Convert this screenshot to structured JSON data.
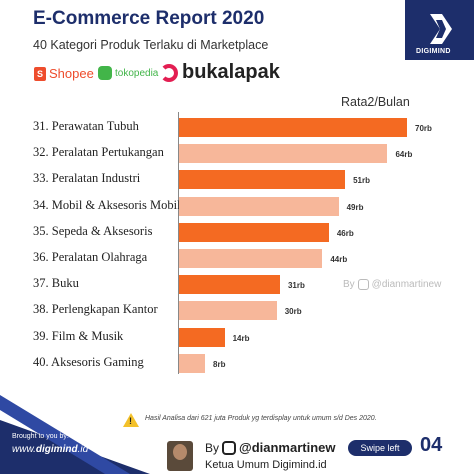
{
  "header": {
    "title": "E-Commerce Report 2020",
    "subtitle": "40 Kategori Produk Terlaku di Marketplace",
    "brand": "DIGIMIND"
  },
  "marketplaces": {
    "shopee": "Shopee",
    "tokopedia": "tokopedia",
    "bukalapak": "bukalapak"
  },
  "chart_data": {
    "type": "bar",
    "orientation": "horizontal",
    "value_header": "Rata2/Bulan",
    "categories": [
      "31. Perawatan Tubuh",
      "32. Peralatan Pertukangan",
      "33. Peralatan Industri",
      "34. Mobil & Aksesoris Mobil",
      "35. Sepeda & Aksesoris",
      "36. Peralatan Olahraga",
      "37. Buku",
      "38. Perlengkapan Kantor",
      "39. Film & Musik",
      "40. Aksesoris Gaming"
    ],
    "values": [
      70,
      64,
      51,
      49,
      46,
      44,
      31,
      30,
      14,
      8
    ],
    "value_labels": [
      "70rb",
      "64rb",
      "51rb",
      "49rb",
      "46rb",
      "44rb",
      "31rb",
      "30rb",
      "14rb",
      "8rb"
    ],
    "unit": "rb",
    "bar_colors": [
      "#f46a22",
      "#f7b79a"
    ],
    "xlim": [
      0,
      70
    ]
  },
  "watermark": {
    "prefix": "By",
    "handle": "@dianmartinew"
  },
  "note": {
    "icon": "warning-icon",
    "text": "Hasil Analisa dari 621 juta Produk yg terdisplay untuk umum s/d Des 2020."
  },
  "footer": {
    "brought_by": "Brought to you by:",
    "site_prefix": "www.",
    "site_bold": "digimind",
    "site_suffix": ".id",
    "by": "By",
    "handle": "@dianmartinew",
    "role": "Ketua Umum Digimind.id",
    "swipe": "Swipe left",
    "page": "04"
  },
  "colors": {
    "navy": "#1d2e6b",
    "bar_dark": "#f46a22",
    "bar_light": "#f7b79a"
  }
}
